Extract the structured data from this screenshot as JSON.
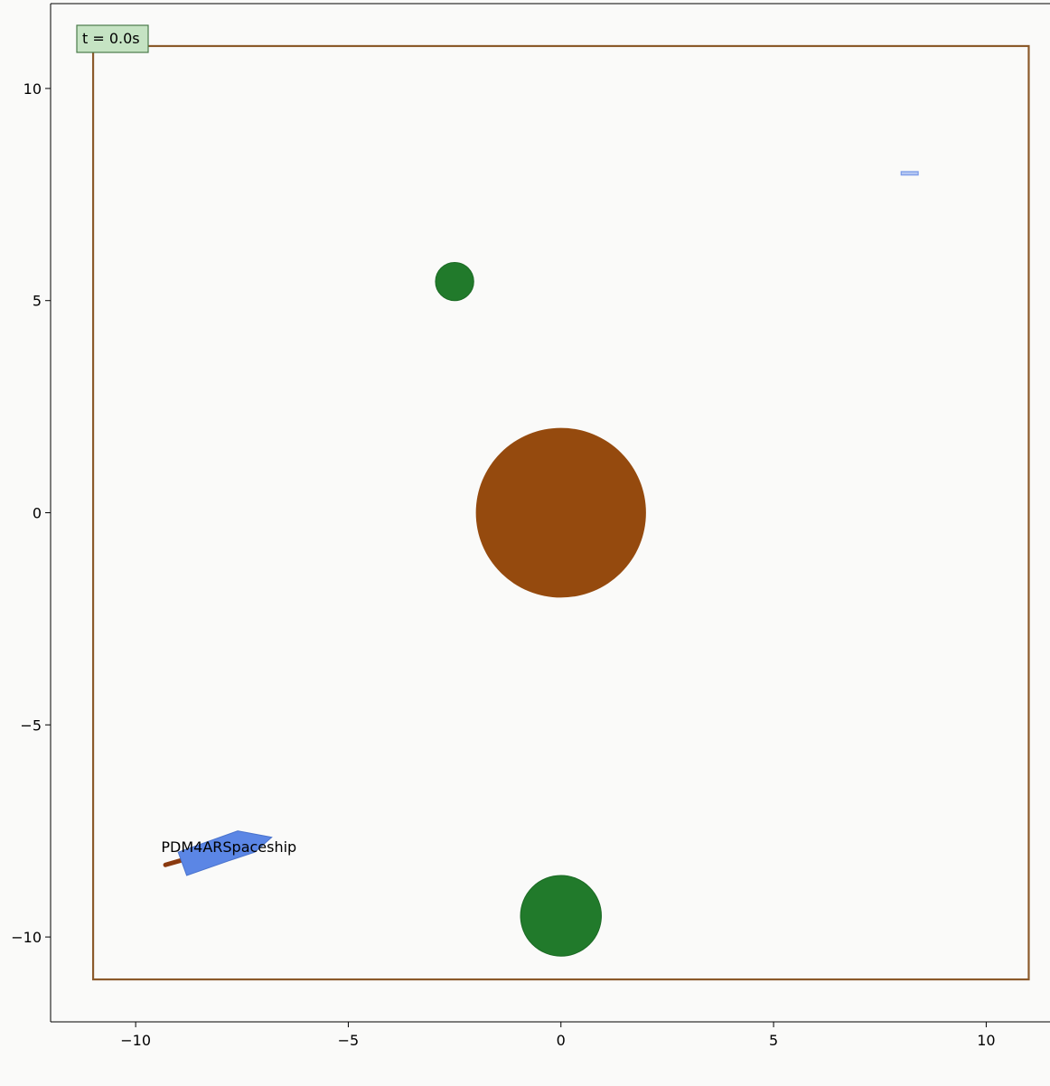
{
  "chart_data": {
    "type": "scatter",
    "title": "",
    "xlabel": "",
    "ylabel": "",
    "xlim": [
      -12,
      11.5
    ],
    "ylim": [
      -12,
      12
    ],
    "grid": false,
    "xticks": [
      {
        "value": -10,
        "label": "−10"
      },
      {
        "value": -5,
        "label": "−5"
      },
      {
        "value": 0,
        "label": "0"
      },
      {
        "value": 5,
        "label": "5"
      },
      {
        "value": 10,
        "label": "10"
      }
    ],
    "yticks": [
      {
        "value": 10,
        "label": "10"
      },
      {
        "value": 5,
        "label": "5"
      },
      {
        "value": 0,
        "label": "0"
      },
      {
        "value": -5,
        "label": "−5"
      },
      {
        "value": -10,
        "label": "−10"
      }
    ],
    "time_label": "t = 0.0s",
    "boundary": {
      "xmin": -11,
      "xmax": 11,
      "ymin": -11,
      "ymax": 11,
      "color": "#8b5a2b"
    },
    "planets": [
      {
        "x": 0,
        "y": 0,
        "r": 2.0,
        "color": "#954a0e"
      }
    ],
    "satellites": [
      {
        "x": -2.5,
        "y": 5.45,
        "r": 0.45,
        "color": "#217a2b"
      },
      {
        "x": 0,
        "y": -9.5,
        "r": 0.95,
        "color": "#217a2b"
      }
    ],
    "goal": {
      "x": 8.2,
      "y": 8.0,
      "w": 0.4,
      "h": 0.08,
      "color": "#7a9ae8"
    },
    "spaceship": {
      "label": "PDM4ARSpaceship",
      "color": "#5b86e5",
      "hull": [
        [
          -9.0,
          -8.0
        ],
        [
          -7.6,
          -7.5
        ],
        [
          -6.8,
          -7.65
        ],
        [
          -7.2,
          -8.0
        ],
        [
          -7.8,
          -8.2
        ],
        [
          -8.8,
          -8.55
        ]
      ],
      "thruster": [
        [
          -9.3,
          -8.3
        ],
        [
          -8.95,
          -8.2
        ]
      ],
      "thruster_color": "#8a3a10"
    }
  }
}
